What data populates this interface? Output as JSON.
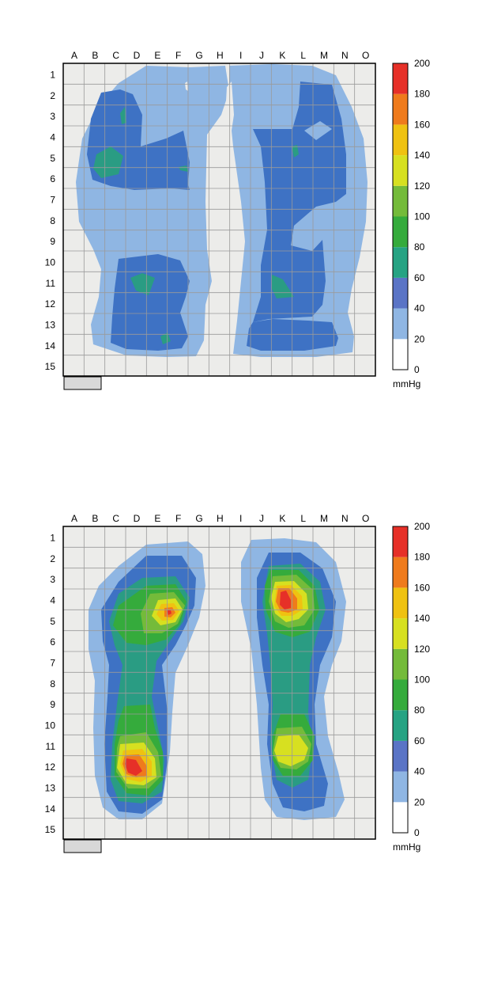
{
  "chart_data": [
    {
      "type": "heatmap",
      "columns": [
        "A",
        "B",
        "C",
        "D",
        "E",
        "F",
        "G",
        "H",
        "I",
        "J",
        "K",
        "L",
        "M",
        "N",
        "O"
      ],
      "rows": [
        "1",
        "2",
        "3",
        "4",
        "5",
        "6",
        "7",
        "8",
        "9",
        "10",
        "11",
        "12",
        "13",
        "14",
        "15"
      ],
      "colorbar": {
        "ticks": [
          "0",
          "20",
          "40",
          "60",
          "80",
          "100",
          "120",
          "140",
          "160",
          "180",
          "200"
        ],
        "unit": "mmHg",
        "bands": [
          {
            "from": 0,
            "to": 20,
            "color": "#ffffff"
          },
          {
            "from": 20,
            "to": 40,
            "color": "#8fb6e3"
          },
          {
            "from": 40,
            "to": 60,
            "color": "#5a74c6"
          },
          {
            "from": 60,
            "to": 80,
            "color": "#26a383"
          },
          {
            "from": 80,
            "to": 100,
            "color": "#35ab3c"
          },
          {
            "from": 100,
            "to": 120,
            "color": "#74bb3a"
          },
          {
            "from": 120,
            "to": 140,
            "color": "#d7e020"
          },
          {
            "from": 140,
            "to": 160,
            "color": "#efc211"
          },
          {
            "from": 160,
            "to": 180,
            "color": "#ef7b1c"
          },
          {
            "from": 180,
            "to": 200,
            "color": "#e63028"
          }
        ]
      },
      "pressure_colors": {
        "c20": "#8fb6e3",
        "c40": "#3e72c4",
        "c60": "#2a9c83",
        "c80": "#35ab3c",
        "c100": "#74bb3a",
        "c120": "#d7e020",
        "c140": "#efc211",
        "c160": "#ef7b1c",
        "c180": "#e63028"
      }
    },
    {
      "type": "heatmap",
      "columns": [
        "A",
        "B",
        "C",
        "D",
        "E",
        "F",
        "G",
        "H",
        "I",
        "J",
        "K",
        "L",
        "M",
        "N",
        "O"
      ],
      "rows": [
        "1",
        "2",
        "3",
        "4",
        "5",
        "6",
        "7",
        "8",
        "9",
        "10",
        "11",
        "12",
        "13",
        "14",
        "15"
      ],
      "colorbar": {
        "ticks": [
          "0",
          "20",
          "40",
          "60",
          "80",
          "100",
          "120",
          "140",
          "160",
          "180",
          "200"
        ],
        "unit": "mmHg",
        "bands": [
          {
            "from": 0,
            "to": 20,
            "color": "#ffffff"
          },
          {
            "from": 20,
            "to": 40,
            "color": "#8fb6e3"
          },
          {
            "from": 40,
            "to": 60,
            "color": "#5a74c6"
          },
          {
            "from": 60,
            "to": 80,
            "color": "#26a383"
          },
          {
            "from": 80,
            "to": 100,
            "color": "#35ab3c"
          },
          {
            "from": 100,
            "to": 120,
            "color": "#74bb3a"
          },
          {
            "from": 120,
            "to": 140,
            "color": "#d7e020"
          },
          {
            "from": 140,
            "to": 160,
            "color": "#efc211"
          },
          {
            "from": 160,
            "to": 180,
            "color": "#ef7b1c"
          },
          {
            "from": 180,
            "to": 200,
            "color": "#e63028"
          }
        ]
      },
      "pressure_colors": {
        "c20": "#8fb6e3",
        "c40": "#3e72c4",
        "c60": "#2a9c83",
        "c80": "#35ab3c",
        "c100": "#74bb3a",
        "c120": "#d7e020",
        "c140": "#efc211",
        "c160": "#ef7b1c",
        "c180": "#e63028"
      }
    }
  ]
}
